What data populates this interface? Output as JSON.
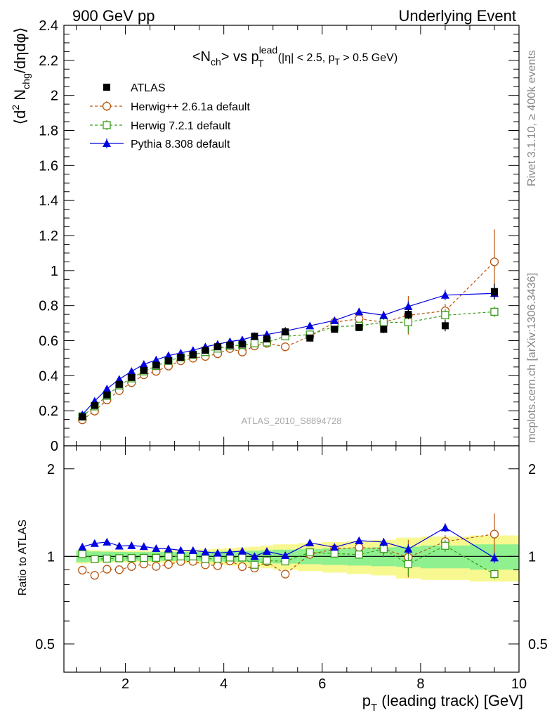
{
  "header": {
    "left": "900 GeV pp",
    "right": "Underlying Event"
  },
  "plot_title": {
    "main": "<N",
    "main_sub": "ch",
    "main_rest": "> vs p",
    "main_sup": "lead",
    "main_sub2": "T",
    "cut_open": "(|η| < 2.5, p",
    "cut_sub": "T",
    "cut_close": " > 0.5 GeV)"
  },
  "ylabel": {
    "pre": "⟨d",
    "sup": "2",
    "mid": " N",
    "sub": "chg",
    "post": "/dηdφ⟩"
  },
  "ratio_ylabel": "Ratio to ATLAS",
  "xlabel": {
    "pre": "p",
    "sub": "T",
    "post": " (leading track) [GeV]"
  },
  "side_text": {
    "rivet": "Rivet 3.1.10, ≥ 400k events",
    "mcplots": "mcplots.cern.ch [arXiv:1306.3436]"
  },
  "analysis_label": "ATLAS_2010_S8894728",
  "legend": [
    {
      "label": "ATLAS",
      "color": "#000000",
      "marker": "filled-square"
    },
    {
      "label": "Herwig++ 2.6.1a default",
      "color": "#b8550f",
      "marker": "open-circle"
    },
    {
      "label": "Herwig 7.2.1 default",
      "color": "#3a9a1a",
      "marker": "open-square"
    },
    {
      "label": "Pythia 8.308 default",
      "color": "#0000e0",
      "marker": "filled-triangle"
    }
  ],
  "colors": {
    "band_inner": "#8ff08f",
    "band_outer": "#f8f890"
  },
  "chart_data": {
    "type": "scatter",
    "x": [
      1.125,
      1.375,
      1.625,
      1.875,
      2.125,
      2.375,
      2.625,
      2.875,
      3.125,
      3.375,
      3.625,
      3.875,
      4.125,
      4.375,
      4.625,
      4.875,
      5.25,
      5.75,
      6.25,
      6.75,
      7.25,
      7.75,
      8.5,
      9.5
    ],
    "xlim": [
      0.75,
      10.0
    ],
    "ylim": [
      0.0,
      2.4
    ],
    "ratio_ylim": [
      0.4,
      2.4
    ],
    "x_ticks": [
      2,
      4,
      6,
      8,
      10
    ],
    "x_tick_labels": [
      "2",
      "4",
      "6",
      "8",
      "10"
    ],
    "y_ticks": [
      0,
      0.2,
      0.4,
      0.6,
      0.8,
      1.0,
      1.2,
      1.4,
      1.6,
      1.8,
      2.0,
      2.2,
      2.4
    ],
    "y_tick_labels": [
      "0",
      "0.2",
      "0.4",
      "0.6",
      "0.8",
      "1",
      "1.2",
      "1.4",
      "1.6",
      "1.8",
      "2",
      "2.2",
      "2.4"
    ],
    "ratio_ticks": [
      0.5,
      1,
      2
    ],
    "ratio_tick_labels": [
      "0.5",
      "1",
      "2"
    ],
    "series": [
      {
        "name": "ATLAS",
        "values": [
          0.165,
          0.23,
          0.29,
          0.35,
          0.39,
          0.43,
          0.46,
          0.485,
          0.505,
          0.52,
          0.545,
          0.565,
          0.575,
          0.58,
          0.625,
          0.61,
          0.65,
          0.615,
          0.665,
          0.675,
          0.665,
          0.75,
          0.685,
          0.88
        ],
        "errors": [
          0.006,
          0.006,
          0.006,
          0.006,
          0.006,
          0.006,
          0.006,
          0.006,
          0.006,
          0.006,
          0.006,
          0.006,
          0.006,
          0.006,
          0.008,
          0.008,
          0.01,
          0.012,
          0.015,
          0.018,
          0.022,
          0.028,
          0.032,
          0.045
        ]
      },
      {
        "name": "Herwig++ 2.6.1a default",
        "values": [
          0.148,
          0.198,
          0.262,
          0.315,
          0.36,
          0.405,
          0.425,
          0.455,
          0.485,
          0.5,
          0.51,
          0.525,
          0.555,
          0.535,
          0.57,
          0.585,
          0.565,
          0.625,
          0.705,
          0.725,
          0.705,
          0.745,
          0.77,
          1.05
        ],
        "errors": [
          0.003,
          0.003,
          0.003,
          0.003,
          0.003,
          0.003,
          0.003,
          0.004,
          0.004,
          0.004,
          0.005,
          0.005,
          0.006,
          0.007,
          0.008,
          0.01,
          0.012,
          0.015,
          0.025,
          0.03,
          0.045,
          0.11,
          0.04,
          0.185
        ]
      },
      {
        "name": "Herwig 7.2.1 default",
        "values": [
          0.168,
          0.225,
          0.285,
          0.345,
          0.385,
          0.425,
          0.455,
          0.485,
          0.505,
          0.52,
          0.535,
          0.555,
          0.57,
          0.575,
          0.585,
          0.59,
          0.625,
          0.635,
          0.68,
          0.685,
          0.705,
          0.705,
          0.745,
          0.765
        ],
        "errors": [
          0.003,
          0.003,
          0.003,
          0.003,
          0.003,
          0.003,
          0.003,
          0.004,
          0.004,
          0.004,
          0.005,
          0.005,
          0.006,
          0.007,
          0.008,
          0.01,
          0.012,
          0.015,
          0.018,
          0.022,
          0.028,
          0.06,
          0.035,
          0.03
        ]
      },
      {
        "name": "Pythia 8.308 default",
        "values": [
          0.178,
          0.255,
          0.325,
          0.38,
          0.425,
          0.465,
          0.49,
          0.515,
          0.53,
          0.545,
          0.565,
          0.58,
          0.595,
          0.605,
          0.625,
          0.635,
          0.655,
          0.685,
          0.715,
          0.765,
          0.745,
          0.795,
          0.86,
          0.87
        ],
        "errors": [
          0.003,
          0.003,
          0.003,
          0.003,
          0.003,
          0.003,
          0.003,
          0.004,
          0.004,
          0.004,
          0.005,
          0.005,
          0.006,
          0.007,
          0.008,
          0.01,
          0.012,
          0.015,
          0.018,
          0.022,
          0.025,
          0.03,
          0.03,
          0.035
        ]
      }
    ],
    "ratio_band": {
      "x_low": [
        1.0,
        1.25,
        1.5,
        1.75,
        2.0,
        2.25,
        2.5,
        2.75,
        3.0,
        3.25,
        3.5,
        3.75,
        4.0,
        4.25,
        4.5,
        4.75,
        5.0,
        5.5,
        6.0,
        6.5,
        7.0,
        7.5,
        8.0,
        9.0
      ],
      "x_high": [
        1.25,
        1.5,
        1.75,
        2.0,
        2.25,
        2.5,
        2.75,
        3.0,
        3.25,
        3.5,
        3.75,
        4.0,
        4.25,
        4.5,
        4.75,
        5.0,
        5.5,
        6.0,
        6.5,
        7.0,
        7.5,
        8.0,
        9.0,
        10.0
      ],
      "inner": [
        0.045,
        0.04,
        0.038,
        0.036,
        0.035,
        0.035,
        0.035,
        0.035,
        0.036,
        0.037,
        0.038,
        0.04,
        0.042,
        0.044,
        0.046,
        0.05,
        0.055,
        0.06,
        0.065,
        0.07,
        0.075,
        0.08,
        0.09,
        0.1
      ],
      "outer": [
        0.055,
        0.05,
        0.048,
        0.046,
        0.046,
        0.046,
        0.048,
        0.05,
        0.052,
        0.055,
        0.058,
        0.062,
        0.068,
        0.074,
        0.08,
        0.09,
        0.1,
        0.11,
        0.12,
        0.13,
        0.14,
        0.16,
        0.17,
        0.18
      ]
    }
  }
}
